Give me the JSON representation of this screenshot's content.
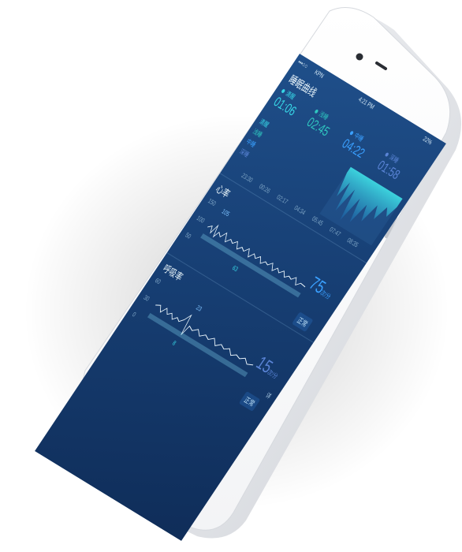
{
  "status_bar": {
    "signals": "•••○○",
    "carrier": "KPN",
    "time": "4:21 PM",
    "battery": "22%"
  },
  "app": {
    "title": "睡眠曲线"
  },
  "sleep_stages": [
    {
      "label": "清醒",
      "time": "01:06",
      "color": "#37d6e6"
    },
    {
      "label": "浅睡",
      "time": "02:45",
      "color": "#2fc7c0"
    },
    {
      "label": "中睡",
      "time": "04:22",
      "color": "#3aa0ff"
    },
    {
      "label": "深睡",
      "time": "01:58",
      "color": "#5a84d6"
    }
  ],
  "stage_axis_labels": [
    "清醒",
    "浅睡",
    "中睡",
    "深睡"
  ],
  "time_axis": [
    "23:30",
    "00:26",
    "02:17",
    "04:34",
    "05:45",
    "07:47",
    "08:35"
  ],
  "heart": {
    "title": "心率",
    "y_ticks": [
      "150",
      "100",
      "50"
    ],
    "marker": "105",
    "value": "75",
    "unit": "次/分",
    "min_label": "63"
  },
  "breath": {
    "title": "呼吸率",
    "y_ticks": [
      "60",
      "30",
      "0"
    ],
    "marker": "23",
    "value": "15",
    "unit": "次/分",
    "min_label": "8"
  },
  "buttons": {
    "normal": "正常",
    "detail": "详"
  }
}
